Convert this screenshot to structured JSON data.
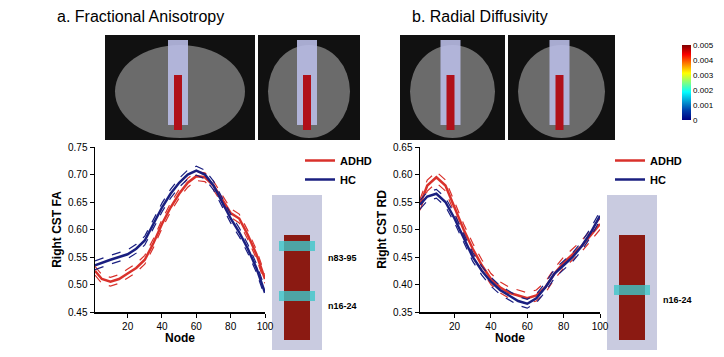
{
  "chart_data": [
    {
      "type": "line",
      "title": "a. Fractional Anisotropy",
      "x_label": "Node",
      "y_label": "Right CST FA",
      "x": [
        1,
        5,
        10,
        15,
        20,
        25,
        30,
        35,
        40,
        45,
        50,
        55,
        60,
        65,
        70,
        75,
        80,
        85,
        90,
        95,
        100
      ],
      "series": [
        {
          "name": "ADHD",
          "color": "#d9312b",
          "line_style": "solid",
          "values": [
            0.525,
            0.51,
            0.505,
            0.51,
            0.52,
            0.53,
            0.545,
            0.575,
            0.61,
            0.64,
            0.665,
            0.685,
            0.697,
            0.695,
            0.68,
            0.655,
            0.63,
            0.62,
            0.59,
            0.555,
            0.51
          ],
          "lower": [
            0.517,
            0.502,
            0.497,
            0.502,
            0.512,
            0.522,
            0.537,
            0.567,
            0.602,
            0.632,
            0.657,
            0.677,
            0.689,
            0.687,
            0.672,
            0.647,
            0.622,
            0.612,
            0.582,
            0.547,
            0.502
          ],
          "upper": [
            0.533,
            0.518,
            0.513,
            0.518,
            0.528,
            0.538,
            0.553,
            0.583,
            0.618,
            0.648,
            0.673,
            0.693,
            0.705,
            0.703,
            0.688,
            0.663,
            0.638,
            0.628,
            0.598,
            0.563,
            0.518
          ]
        },
        {
          "name": "HC",
          "color": "#1a1f80",
          "line_style": "solid",
          "values": [
            0.535,
            0.54,
            0.545,
            0.55,
            0.555,
            0.565,
            0.58,
            0.61,
            0.64,
            0.665,
            0.685,
            0.7,
            0.707,
            0.7,
            0.68,
            0.65,
            0.62,
            0.595,
            0.565,
            0.53,
            0.485
          ],
          "lower": [
            0.527,
            0.532,
            0.537,
            0.542,
            0.547,
            0.557,
            0.572,
            0.602,
            0.632,
            0.657,
            0.677,
            0.692,
            0.699,
            0.692,
            0.672,
            0.642,
            0.612,
            0.587,
            0.557,
            0.522,
            0.477
          ],
          "upper": [
            0.543,
            0.548,
            0.553,
            0.558,
            0.563,
            0.573,
            0.588,
            0.618,
            0.648,
            0.673,
            0.693,
            0.708,
            0.715,
            0.708,
            0.688,
            0.658,
            0.628,
            0.603,
            0.573,
            0.538,
            0.493
          ]
        }
      ],
      "xlim": [
        1,
        100
      ],
      "xticks": [
        20,
        40,
        60,
        80,
        100
      ],
      "ylim": [
        0.45,
        0.75
      ],
      "yticks": [
        0.45,
        {
          "value": 0.5,
          "label": "0.50"
        },
        0.55,
        {
          "value": 0.6,
          "label": "0.60"
        },
        0.65,
        {
          "value": 0.7,
          "label": "0.70"
        },
        0.75
      ],
      "legend": "right",
      "grid": false,
      "annotations": [
        "n83-95",
        "n16-24"
      ]
    },
    {
      "type": "line",
      "title": "b. Radial Diffusivity",
      "x_label": "Node",
      "y_label": "Right CST RD",
      "x": [
        1,
        5,
        10,
        15,
        20,
        25,
        30,
        35,
        40,
        45,
        50,
        55,
        60,
        65,
        70,
        75,
        80,
        85,
        90,
        95,
        100
      ],
      "series": [
        {
          "name": "ADHD",
          "color": "#d9312b",
          "line_style": "solid",
          "values": [
            0.545,
            0.58,
            0.595,
            0.58,
            0.54,
            0.5,
            0.465,
            0.435,
            0.41,
            0.395,
            0.385,
            0.38,
            0.375,
            0.38,
            0.395,
            0.42,
            0.44,
            0.455,
            0.47,
            0.49,
            0.51
          ],
          "lower": [
            0.535,
            0.57,
            0.585,
            0.57,
            0.53,
            0.49,
            0.455,
            0.425,
            0.4,
            0.385,
            0.375,
            0.37,
            0.365,
            0.37,
            0.385,
            0.41,
            0.43,
            0.445,
            0.46,
            0.48,
            0.5
          ],
          "upper": [
            0.555,
            0.59,
            0.605,
            0.59,
            0.55,
            0.51,
            0.475,
            0.445,
            0.42,
            0.405,
            0.395,
            0.39,
            0.385,
            0.39,
            0.405,
            0.43,
            0.45,
            0.465,
            0.48,
            0.5,
            0.52
          ]
        },
        {
          "name": "HC",
          "color": "#1a1f80",
          "line_style": "solid",
          "values": [
            0.545,
            0.56,
            0.565,
            0.55,
            0.52,
            0.485,
            0.45,
            0.425,
            0.405,
            0.39,
            0.38,
            0.37,
            0.365,
            0.375,
            0.395,
            0.42,
            0.435,
            0.45,
            0.47,
            0.495,
            0.525
          ],
          "lower": [
            0.537,
            0.552,
            0.557,
            0.542,
            0.512,
            0.477,
            0.442,
            0.417,
            0.397,
            0.382,
            0.372,
            0.362,
            0.357,
            0.367,
            0.387,
            0.412,
            0.427,
            0.442,
            0.462,
            0.487,
            0.517
          ],
          "upper": [
            0.553,
            0.568,
            0.573,
            0.558,
            0.528,
            0.493,
            0.458,
            0.433,
            0.413,
            0.398,
            0.388,
            0.378,
            0.373,
            0.383,
            0.403,
            0.428,
            0.443,
            0.458,
            0.478,
            0.503,
            0.533
          ]
        }
      ],
      "xlim": [
        1,
        100
      ],
      "xticks": [
        20,
        40,
        60,
        80,
        100
      ],
      "ylim": [
        0.35,
        0.65
      ],
      "yticks": [
        0.35,
        {
          "value": 0.4,
          "label": "0.40"
        },
        0.45,
        {
          "value": 0.5,
          "label": "0.50"
        },
        0.55,
        {
          "value": 0.6,
          "label": "0.60"
        },
        0.65
      ],
      "legend": "right",
      "grid": false,
      "annotations": [
        "n16-24"
      ],
      "colorbar": {
        "range": [
          0,
          0.005
        ],
        "ticks": [
          0,
          0.001,
          0.002,
          0.003,
          0.004,
          0.005
        ]
      }
    }
  ]
}
